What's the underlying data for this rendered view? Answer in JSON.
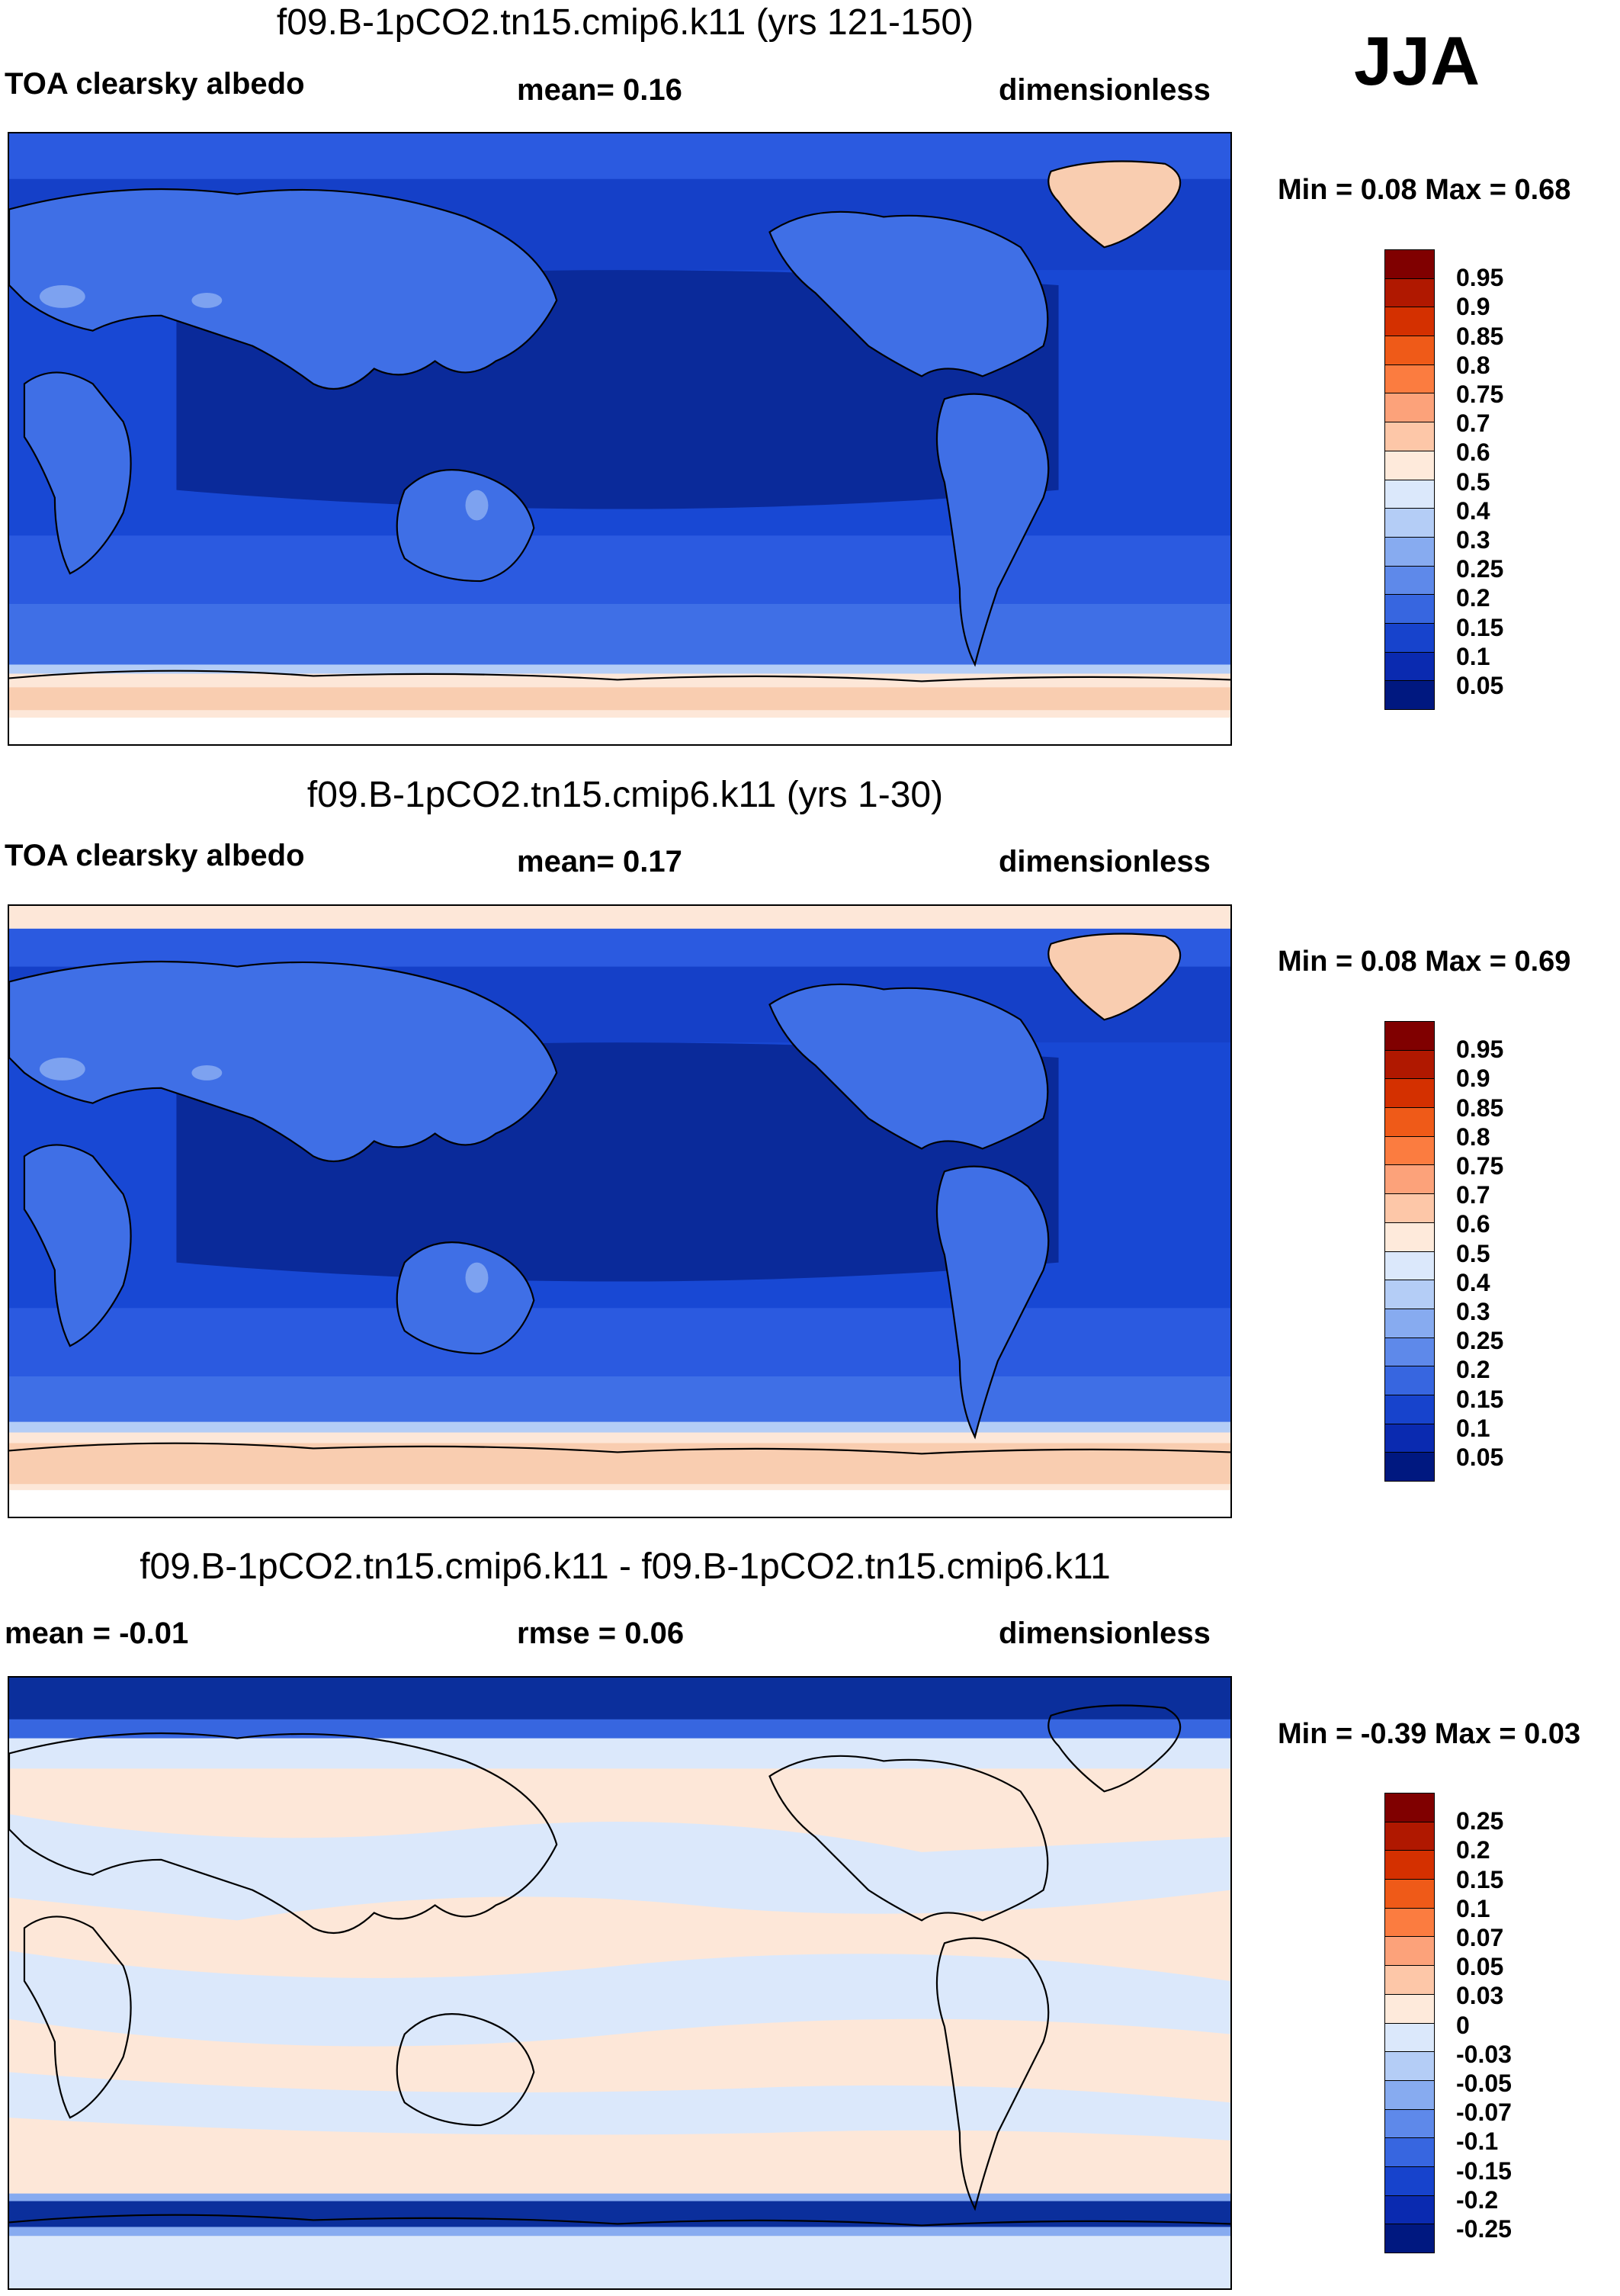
{
  "season": "JJA",
  "palette": {
    "ocean_deep": "#0a2a9a",
    "ocean_mid": "#1540c8",
    "ocean_light": "#2b5ae0",
    "land": "#3f6fe6",
    "land_bright": "#7da2f0",
    "ice": "#f9cdb0",
    "ice_edge": "#fde7d8",
    "coast": "#000000",
    "diff_bg": "#fde7d8",
    "diff_blue_light": "#d8e6fb",
    "diff_blue_band": "#0b2f9c"
  },
  "panels": [
    {
      "title": "f09.B-1pCO2.tn15.cmip6.k11 (yrs 121-150)",
      "left_label": "TOA clearsky albedo",
      "center_label": "mean=   0.16",
      "right_label": "dimensionless",
      "minmax": "Min =   0.08 Max =   0.68",
      "colorbar": {
        "labels": [
          "0.95",
          "0.9",
          "0.85",
          "0.8",
          "0.75",
          "0.7",
          "0.6",
          "0.5",
          "0.4",
          "0.3",
          "0.25",
          "0.2",
          "0.15",
          "0.1",
          "0.05"
        ],
        "colors": [
          "#800000",
          "#b01800",
          "#d43000",
          "#ef5a18",
          "#fb7c40",
          "#fca27a",
          "#fdc7a8",
          "#feeadb",
          "#dbe8fb",
          "#b4cdf6",
          "#87abf0",
          "#5e89ea",
          "#3766e0",
          "#1743cc",
          "#0a2ab0",
          "#001880"
        ]
      }
    },
    {
      "title": "f09.B-1pCO2.tn15.cmip6.k11 (yrs 1-30)",
      "left_label": "TOA clearsky albedo",
      "center_label": "mean=   0.17",
      "right_label": "dimensionless",
      "minmax": "Min =   0.08 Max =   0.69",
      "colorbar": {
        "labels": [
          "0.95",
          "0.9",
          "0.85",
          "0.8",
          "0.75",
          "0.7",
          "0.6",
          "0.5",
          "0.4",
          "0.3",
          "0.25",
          "0.2",
          "0.15",
          "0.1",
          "0.05"
        ],
        "colors": [
          "#800000",
          "#b01800",
          "#d43000",
          "#ef5a18",
          "#fb7c40",
          "#fca27a",
          "#fdc7a8",
          "#feeadb",
          "#dbe8fb",
          "#b4cdf6",
          "#87abf0",
          "#5e89ea",
          "#3766e0",
          "#1743cc",
          "#0a2ab0",
          "#001880"
        ]
      }
    },
    {
      "title": "f09.B-1pCO2.tn15.cmip6.k11 - f09.B-1pCO2.tn15.cmip6.k11",
      "left_label": "mean =  -0.01",
      "center_label": "rmse =    0.06",
      "right_label": "dimensionless",
      "minmax": "Min =  -0.39 Max =   0.03",
      "colorbar": {
        "labels": [
          "0.25",
          "0.2",
          "0.15",
          "0.1",
          "0.07",
          "0.05",
          "0.03",
          "0",
          "-0.03",
          "-0.05",
          "-0.07",
          "-0.1",
          "-0.15",
          "-0.2",
          "-0.25"
        ],
        "colors": [
          "#800000",
          "#b01800",
          "#d43000",
          "#ef5a18",
          "#fb7c40",
          "#fca27a",
          "#fdc7a8",
          "#feeadb",
          "#dbe8fb",
          "#b4cdf6",
          "#87abf0",
          "#5e89ea",
          "#3766e0",
          "#1743cc",
          "#0a2ab0",
          "#001880"
        ]
      }
    }
  ]
}
